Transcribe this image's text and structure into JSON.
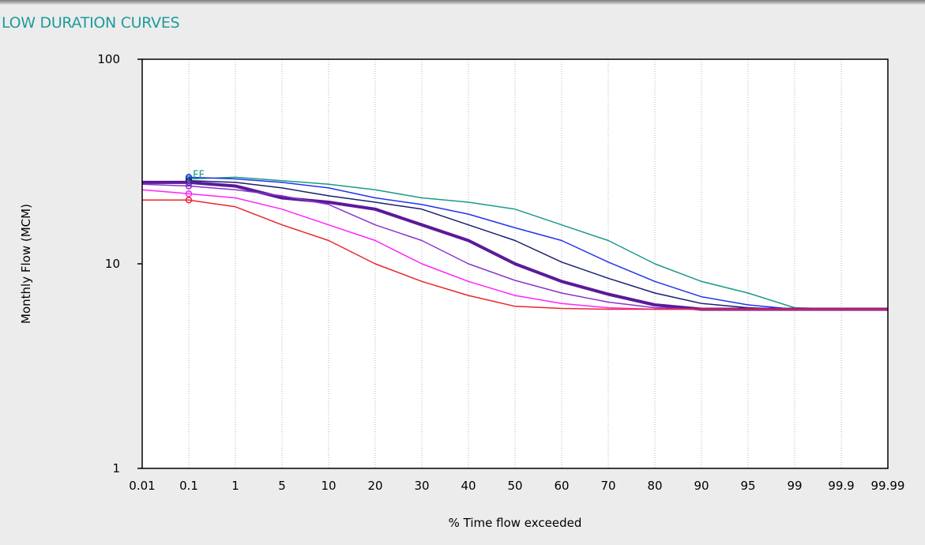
{
  "window": {
    "title": "LOW DURATION CURVES"
  },
  "chart_data": {
    "type": "line",
    "title": "LOW DURATION CURVES",
    "xlabel": "% Time flow exceeded",
    "ylabel": "Monthly Flow (MCM)",
    "x_scale": "probability",
    "y_scale": "log",
    "ylim": [
      1,
      100
    ],
    "grid": {
      "x": true,
      "y": false
    },
    "x_ticks": [
      "0.01",
      "0.1",
      "1",
      "5",
      "10",
      "20",
      "30",
      "40",
      "50",
      "60",
      "70",
      "80",
      "90",
      "95",
      "99",
      "99.9",
      "99.99"
    ],
    "y_ticks": [
      "1",
      "10",
      "100"
    ],
    "series": [
      {
        "color": "#1a9a8a",
        "marker": "FF",
        "width": 1.5,
        "x": [
          0.1,
          1,
          5,
          10,
          20,
          30,
          40,
          50,
          60,
          70,
          80,
          90,
          95,
          99,
          99.9,
          99.99
        ],
        "values": [
          26,
          26.5,
          25.5,
          24.5,
          23,
          21,
          20,
          18.5,
          15.5,
          13,
          10,
          8.2,
          7.2,
          6.1,
          6,
          6
        ]
      },
      {
        "color": "#2233ee",
        "marker": "",
        "width": 1.5,
        "x": [
          0.1,
          1,
          5,
          10,
          20,
          30,
          40,
          50,
          60,
          70,
          80,
          90,
          95,
          99,
          99.9,
          99.99
        ],
        "values": [
          26.5,
          26,
          25,
          23.5,
          21,
          19.5,
          17.5,
          15,
          13,
          10.2,
          8.2,
          6.9,
          6.3,
          6,
          6,
          6
        ]
      },
      {
        "color": "#1a1f6e",
        "marker": "",
        "width": 1.5,
        "x": [
          0.1,
          1,
          5,
          10,
          20,
          30,
          40,
          50,
          60,
          70,
          80,
          90,
          95,
          99,
          99.9,
          99.99
        ],
        "values": [
          25.5,
          25,
          23.5,
          21.5,
          20,
          18.5,
          15.5,
          13,
          10.2,
          8.5,
          7.2,
          6.4,
          6.1,
          6,
          6,
          6
        ]
      },
      {
        "color": "#5a1a9a",
        "marker": "",
        "width": 4,
        "x": [
          0.01,
          0.1,
          1,
          5,
          10,
          20,
          30,
          40,
          50,
          60,
          70,
          80,
          90,
          95,
          99,
          99.9,
          99.99
        ],
        "values": [
          25,
          25,
          24,
          21,
          20,
          18.5,
          15.5,
          13,
          10,
          8.2,
          7.1,
          6.3,
          6,
          6,
          6,
          6,
          6
        ]
      },
      {
        "color": "#8a33cc",
        "marker": "",
        "width": 1.5,
        "x": [
          0.01,
          0.1,
          1,
          5,
          10,
          20,
          30,
          40,
          50,
          60,
          70,
          80,
          90,
          95,
          99,
          99.9,
          99.99
        ],
        "values": [
          24.5,
          24,
          23,
          21.5,
          19.5,
          15.5,
          13,
          10,
          8.3,
          7.2,
          6.5,
          6.1,
          6,
          6,
          6,
          6,
          6
        ]
      },
      {
        "color": "#ff22ff",
        "marker": "",
        "width": 1.5,
        "x": [
          0.01,
          0.1,
          1,
          5,
          10,
          20,
          30,
          40,
          50,
          60,
          70,
          80,
          90,
          95,
          99,
          99.9,
          99.99
        ],
        "values": [
          23,
          22,
          21,
          18.5,
          15.5,
          13,
          10,
          8.2,
          7,
          6.4,
          6.1,
          6,
          6,
          6,
          6,
          6,
          6
        ]
      },
      {
        "color": "#e8262e",
        "marker": "",
        "width": 1.5,
        "x": [
          0.01,
          0.1,
          1,
          5,
          10,
          20,
          30,
          40,
          50,
          60,
          70,
          80,
          90,
          95,
          99,
          99.9,
          99.99
        ],
        "values": [
          20.5,
          20.5,
          19,
          15.5,
          13,
          10,
          8.2,
          7,
          6.2,
          6.05,
          6,
          6,
          6,
          6,
          6,
          6,
          6
        ]
      }
    ]
  }
}
